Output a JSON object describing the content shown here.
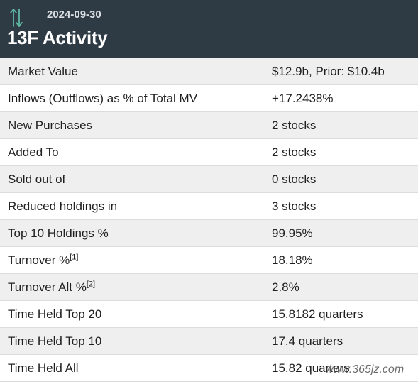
{
  "header": {
    "date": "2024-09-30",
    "title": "13F Activity",
    "icon": "up-down-arrows-icon",
    "icon_color": "#5fb8a4",
    "background": "#2e3a44"
  },
  "rows": [
    {
      "label": "Market Value",
      "value": "$12.9b, Prior: $10.4b"
    },
    {
      "label": "Inflows (Outflows) as % of Total MV",
      "value": "+17.2438%",
      "value_color": "#1a8a2a"
    },
    {
      "label": "New Purchases",
      "value": "2 stocks"
    },
    {
      "label": "Added To",
      "value": "2 stocks"
    },
    {
      "label": "Sold out of",
      "value": "0 stocks"
    },
    {
      "label": "Reduced holdings in",
      "value": "3 stocks"
    },
    {
      "label": "Top 10 Holdings %",
      "value": "99.95%"
    },
    {
      "label": "Turnover %",
      "footnote": "[1]",
      "value": "18.18%"
    },
    {
      "label": "Turnover Alt %",
      "footnote": "[2]",
      "value": "2.8%"
    },
    {
      "label": "Time Held Top 20",
      "value": "15.8182 quarters"
    },
    {
      "label": "Time Held Top 10",
      "value": "17.4 quarters"
    },
    {
      "label": "Time Held All",
      "value": "15.82 quarters"
    }
  ],
  "watermark": "www.365jz.com"
}
